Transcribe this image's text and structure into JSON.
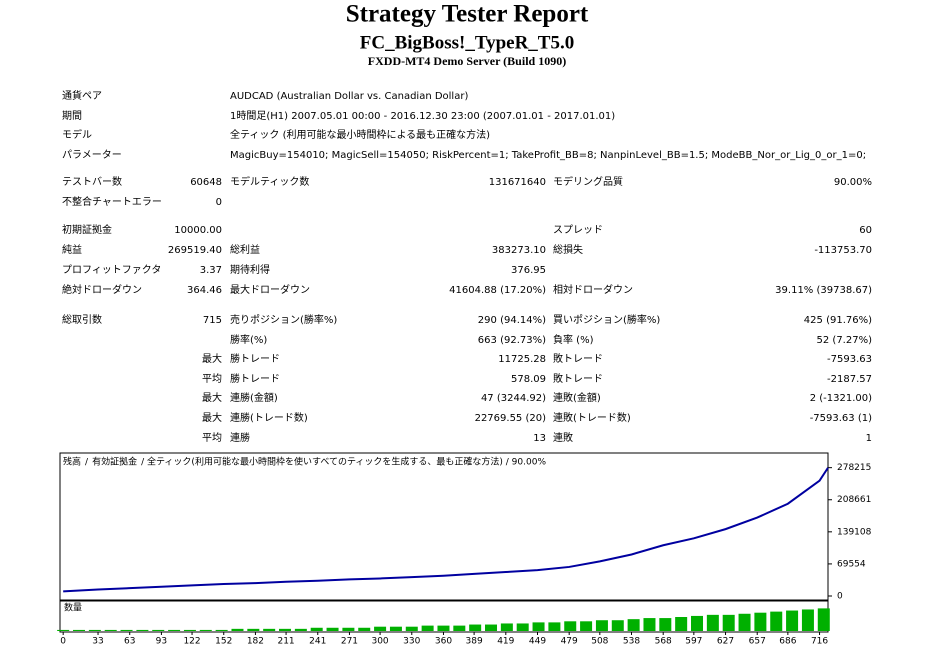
{
  "header": {
    "title": "Strategy Tester Report",
    "subtitle": "FC_BigBoss!_TypeR_T5.0",
    "server": "FXDD-MT4 Demo Server (Build 1090)"
  },
  "info": [
    [
      "通貨ペア",
      "AUDCAD (Australian Dollar vs. Canadian Dollar)"
    ],
    [
      "期間",
      "1時間足(H1) 2007.05.01 00:00 - 2016.12.30 23:00 (2007.01.01 - 2017.01.01)"
    ],
    [
      "モデル",
      "全ティック (利用可能な最小時間枠による最も正確な方法)"
    ],
    [
      "パラメーター",
      "MagicBuy=154010; MagicSell=154050; RiskPercent=1; TakeProfit_BB=8; NanpinLevel_BB=1.5; ModeBB_Nor_or_Lig_0_or_1=0;"
    ]
  ],
  "stats": [
    [
      "テストバー数",
      "60648",
      "モデルティック数",
      "131671640",
      "モデリング品質",
      "90.00%"
    ],
    [
      "不整合チャートエラー",
      "0",
      null,
      null,
      null,
      null
    ],
    [
      "初期証拠金",
      "10000.00",
      null,
      null,
      "スプレッド",
      "60"
    ],
    [
      "純益",
      "269519.40",
      "総利益",
      "383273.10",
      "総損失",
      "-113753.70"
    ],
    [
      "プロフィットファクタ",
      "3.37",
      "期待利得",
      "376.95",
      null,
      null
    ],
    [
      "絶対ドローダウン",
      "364.46",
      "最大ドローダウン",
      "41604.88 (17.20%)",
      "相対ドローダウン",
      "39.11% (39738.67)"
    ]
  ],
  "trades": [
    [
      "総取引数",
      "715",
      "売りポジション(勝率%)",
      "290 (94.14%)",
      "買いポジション(勝率%)",
      "425 (91.76%)"
    ],
    [
      null,
      null,
      "勝率(%)",
      "663 (92.73%)",
      "負率 (%)",
      "52 (7.27%)"
    ],
    [
      null,
      "最大",
      "勝トレード",
      "11725.28",
      "敗トレード",
      "-7593.63"
    ],
    [
      null,
      "平均",
      "勝トレード",
      "578.09",
      "敗トレード",
      "-2187.57"
    ],
    [
      null,
      "最大",
      "連勝(金額)",
      "47 (3244.92)",
      "連敗(金額)",
      "2 (-1321.00)"
    ],
    [
      null,
      "最大",
      "連勝(トレード数)",
      "22769.55 (20)",
      "連敗(トレード数)",
      "-7593.63 (1)"
    ],
    [
      null,
      "平均",
      "連勝",
      "13",
      "連敗",
      "1"
    ]
  ],
  "chart_data": {
    "type": "line",
    "legend": [
      {
        "text": "残高",
        "color": "#0000c0"
      },
      {
        "text": "/",
        "color": "#000000"
      },
      {
        "text": "有効証拠金",
        "color": "#00a000"
      },
      {
        "text": "/ 全ティック(利用可能な最小時間枠を使いすべてのティックを生成する、最も正確な方法) / 90.00%",
        "color": "#000000"
      }
    ],
    "x": [
      0,
      33,
      63,
      93,
      122,
      152,
      182,
      211,
      241,
      271,
      300,
      330,
      360,
      389,
      419,
      449,
      479,
      508,
      538,
      568,
      597,
      627,
      657,
      686,
      716,
      724
    ],
    "series": [
      {
        "name": "残高",
        "color": "#0000a0",
        "values": [
          10000,
          14000,
          17000,
          20000,
          23000,
          26000,
          28000,
          31000,
          33000,
          36000,
          38000,
          41000,
          44000,
          48000,
          52000,
          56000,
          63000,
          75000,
          90000,
          110000,
          125000,
          145000,
          170000,
          200000,
          250000,
          278000
        ]
      }
    ],
    "xlim": [
      -3,
      724
    ],
    "ylim": [
      0,
      310000
    ],
    "xticks": [
      0,
      33,
      63,
      93,
      122,
      152,
      182,
      211,
      241,
      271,
      300,
      330,
      360,
      389,
      419,
      449,
      479,
      508,
      538,
      568,
      597,
      627,
      657,
      686,
      716
    ],
    "yticks": [
      0,
      69554,
      139108,
      208661,
      278215
    ],
    "volume": {
      "label": "数量",
      "color": "#00b000",
      "vlim": [
        0,
        2.6
      ],
      "x": [
        0,
        15,
        30,
        45,
        60,
        75,
        90,
        105,
        120,
        135,
        150,
        165,
        180,
        195,
        210,
        225,
        240,
        255,
        270,
        285,
        300,
        315,
        330,
        345,
        360,
        375,
        390,
        405,
        420,
        435,
        450,
        465,
        480,
        495,
        510,
        525,
        540,
        555,
        570,
        585,
        600,
        615,
        630,
        645,
        660,
        675,
        690,
        705,
        720
      ],
      "values": [
        0.1,
        0.1,
        0.1,
        0.1,
        0.1,
        0.1,
        0.1,
        0.1,
        0.1,
        0.1,
        0.1,
        0.2,
        0.2,
        0.2,
        0.2,
        0.2,
        0.3,
        0.3,
        0.3,
        0.3,
        0.4,
        0.4,
        0.4,
        0.5,
        0.5,
        0.5,
        0.6,
        0.6,
        0.7,
        0.7,
        0.8,
        0.8,
        0.9,
        0.9,
        1.0,
        1.0,
        1.1,
        1.2,
        1.2,
        1.3,
        1.4,
        1.5,
        1.5,
        1.6,
        1.7,
        1.8,
        1.9,
        2.0,
        2.1
      ]
    }
  }
}
